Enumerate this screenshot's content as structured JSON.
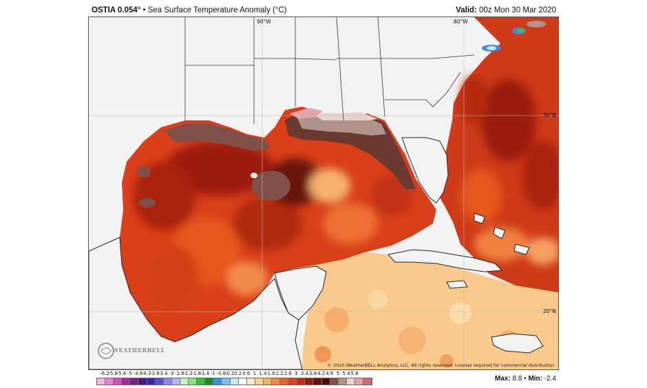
{
  "header": {
    "product": "OSTIA 0.054",
    "product_suffix": "°",
    "separator": " • ",
    "title": "Sea Surface Temperature Anomaly (°C)",
    "valid_label": "Valid:",
    "valid_time": " 00z Mon 30 Mar 2020"
  },
  "map": {
    "lon_labels": [
      "90°W",
      "80°W"
    ],
    "lat_labels": [
      "30°N",
      "20°N"
    ],
    "copyright": "© 2020 WeatherBELL Analytics, LLC. All rights reserved. License required for commercial distribution.",
    "logo_text": "WEATHERBELL",
    "land_color": "#f2f2f2",
    "border_color": "#222222"
  },
  "colorbar": {
    "tick_labels": [
      "-6.2",
      "-5.8",
      "-5.4",
      "-5",
      "-4.6",
      "-4.2",
      "-3.8",
      "-3.4",
      "-3",
      "-2.6",
      "-2.2",
      "-1.8",
      "-1.4",
      "-1",
      "-0.6",
      "-0.2",
      "0.2",
      "0.6",
      "1",
      "1.4",
      "1.8",
      "2.2",
      "2.6",
      "3",
      "3.4",
      "3.8",
      "4.2",
      "4.6",
      "5",
      "5.4",
      "5.8"
    ],
    "colors": [
      "#f7b4e6",
      "#ec7fd6",
      "#d24fc0",
      "#a9289f",
      "#7c1b86",
      "#4c1a7a",
      "#3b2a9e",
      "#5a53c6",
      "#8d89de",
      "#b7b4ec",
      "#c8f2c4",
      "#8ee08a",
      "#3fbf3a",
      "#1f8a2a",
      "#3d8de0",
      "#7dbcf0",
      "#c8e8fa",
      "#ffffff",
      "#fce7c0",
      "#fbd08e",
      "#f9b05e",
      "#f5893a",
      "#ee6124",
      "#e14018",
      "#c42a10",
      "#9a1c0c",
      "#6a1208",
      "#4a0e08",
      "#7e5048",
      "#b0928c",
      "#e8d2d0",
      "#e2a6aa",
      "#d06a72"
    ]
  },
  "stats": {
    "max_label": "Max:",
    "max_value": "8.8",
    "sep": "•",
    "min_label": "Min:",
    "min_value": "-2.4"
  }
}
